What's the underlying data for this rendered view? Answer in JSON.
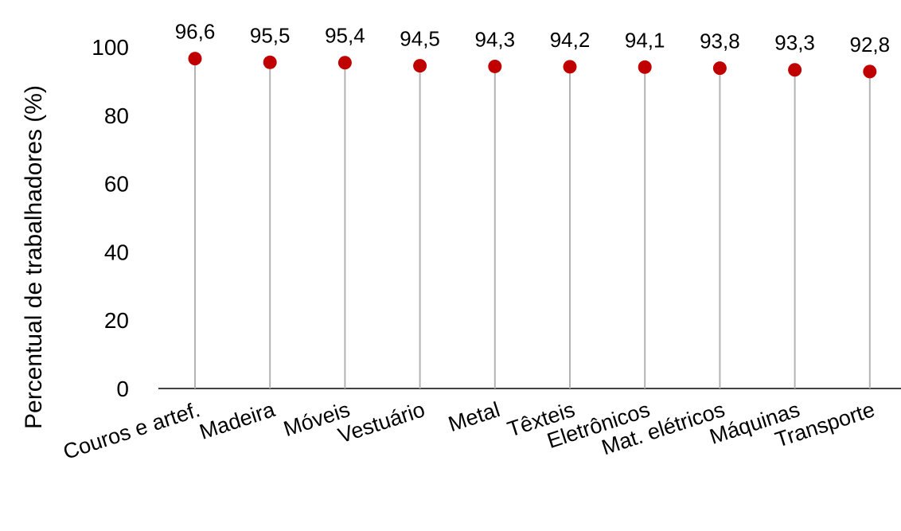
{
  "chart_data": {
    "type": "lollipop",
    "categories": [
      "Couros e artef.",
      "Madeira",
      "Móveis",
      "Vestuário",
      "Metal",
      "Têxteis",
      "Eletrônicos",
      "Mat. elétricos",
      "Máquinas",
      "Transporte"
    ],
    "values": [
      96.6,
      95.5,
      95.4,
      94.5,
      94.3,
      94.2,
      94.1,
      93.8,
      93.3,
      92.8
    ],
    "value_labels": [
      "96,6",
      "95,5",
      "95,4",
      "94,5",
      "94,3",
      "94,2",
      "94,1",
      "93,8",
      "93,3",
      "92,8"
    ],
    "ylabel": "Percentual de trabalhadores (%)",
    "ylim": [
      0,
      100
    ],
    "yticks": [
      "0",
      "20",
      "40",
      "60",
      "80",
      "100"
    ],
    "grid": false,
    "marker_color": "#c00000",
    "stem_color": "#b3b3b3"
  }
}
